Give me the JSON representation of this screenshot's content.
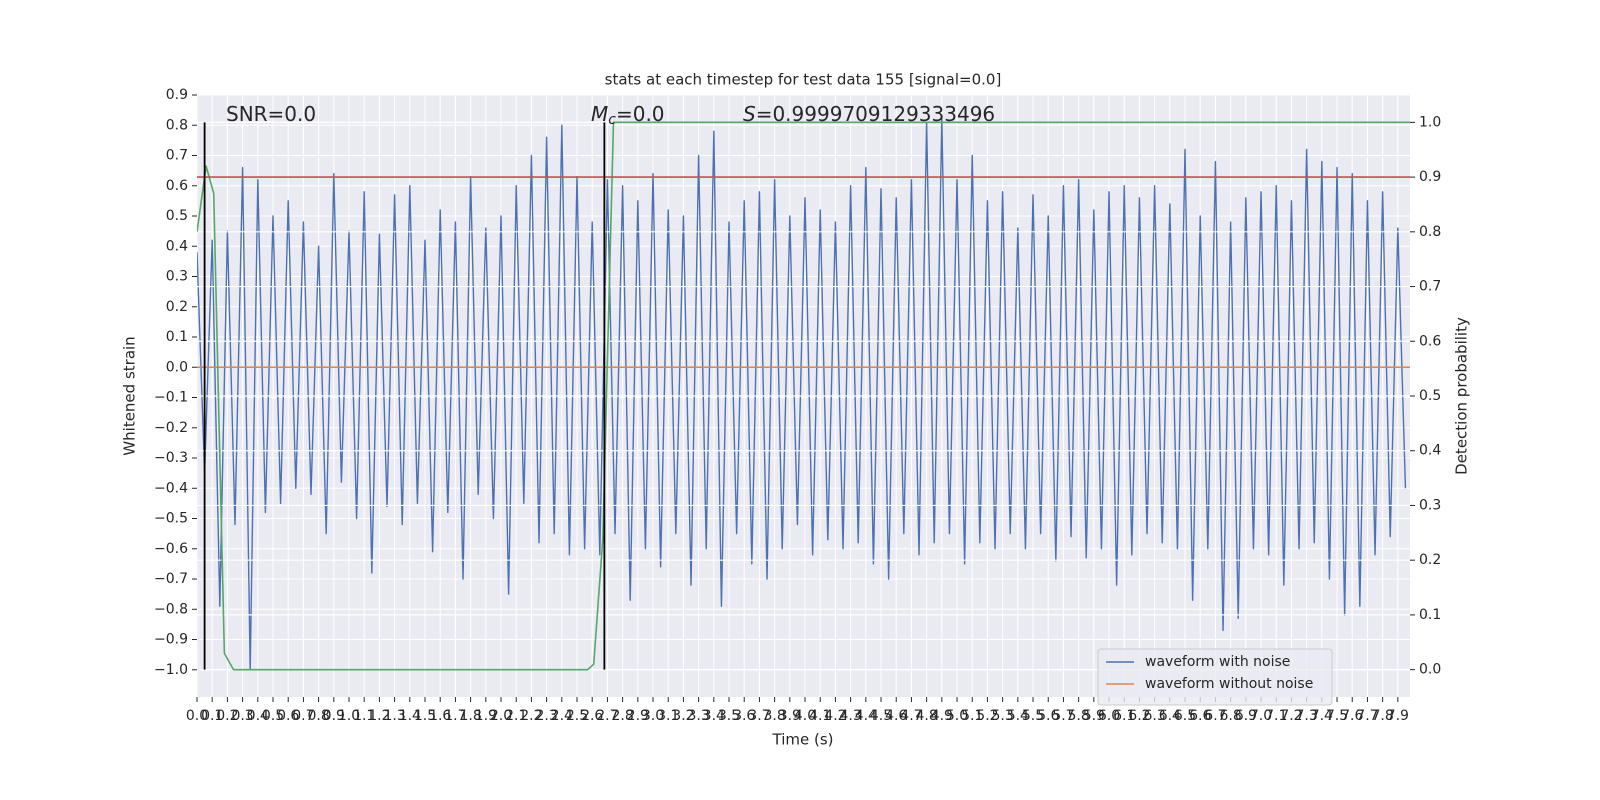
{
  "chart_data": {
    "type": "line",
    "title": "stats at each timestep for test data 155 [signal=0.0]",
    "xlabel": "Time (s)",
    "ylabel": "Whitened strain",
    "y2label": "Detection probability",
    "annotations": [
      {
        "text": "SNR=0.0"
      },
      {
        "italic": "M",
        "sub": "c",
        "text": "=0.0"
      },
      {
        "italic": "S",
        "text": "=0.9999709129333496"
      }
    ],
    "xlim": [
      0,
      7.98
    ],
    "ylim": [
      -1.09,
      0.9
    ],
    "y2lim": [
      -0.05,
      1.05
    ],
    "grid": true,
    "legend": "lower right",
    "xticks": [
      {
        "value": 0,
        "label": "0.0"
      },
      0.1,
      0.2,
      0.3,
      0.4,
      0.5,
      0.6,
      0.7,
      0.8,
      0.9,
      {
        "value": 1,
        "label": "1.0"
      },
      1.1,
      1.2,
      1.3,
      1.4,
      1.5,
      1.6,
      1.7,
      1.8,
      1.9,
      {
        "value": 2,
        "label": "2.0"
      },
      2.1,
      2.2,
      2.3,
      2.4,
      2.5,
      2.6,
      2.7,
      2.8,
      2.9,
      {
        "value": 3,
        "label": "3.0"
      },
      3.1,
      3.2,
      3.3,
      3.4,
      3.5,
      3.6,
      3.7,
      3.8,
      3.9,
      {
        "value": 4,
        "label": "4.0"
      },
      4.1,
      4.2,
      4.3,
      4.4,
      4.5,
      4.6,
      4.7,
      4.8,
      4.9,
      {
        "value": 5,
        "label": "5.0"
      },
      5.1,
      5.2,
      5.3,
      5.4,
      5.5,
      5.6,
      5.7,
      5.8,
      5.9,
      {
        "value": 6,
        "label": "6.0"
      },
      6.1,
      6.2,
      6.3,
      6.4,
      6.5,
      6.6,
      6.7,
      6.8,
      6.9,
      {
        "value": 7,
        "label": "7.0"
      },
      7.1,
      7.2,
      7.3,
      7.4,
      7.5,
      7.6,
      7.7,
      7.8,
      7.9
    ],
    "yticks": [
      0.9,
      0.8,
      0.7,
      0.6,
      0.5,
      0.4,
      0.3,
      0.2,
      0.1,
      {
        "value": 0,
        "label": "0.0"
      },
      {
        "value": -0.1,
        "label": "−0.1"
      },
      {
        "value": -0.2,
        "label": "−0.2"
      },
      {
        "value": -0.3,
        "label": "−0.3"
      },
      {
        "value": -0.4,
        "label": "−0.4"
      },
      {
        "value": -0.5,
        "label": "−0.5"
      },
      {
        "value": -0.6,
        "label": "−0.6"
      },
      {
        "value": -0.7,
        "label": "−0.7"
      },
      {
        "value": -0.8,
        "label": "−0.8"
      },
      {
        "value": -0.9,
        "label": "−0.9"
      },
      {
        "value": -1,
        "label": "−1.0"
      }
    ],
    "y2ticks": [
      {
        "value": 0,
        "label": "0.0"
      },
      0.1,
      0.2,
      0.3,
      0.4,
      0.5,
      0.6,
      0.7,
      0.8,
      0.9,
      {
        "value": 1,
        "label": "1.0"
      }
    ],
    "vlines": {
      "x": [
        0.05,
        2.68
      ],
      "ymin": 0,
      "ymax": 1,
      "axis": "y2",
      "color": "#000000"
    },
    "series": [
      {
        "name": "waveform with noise",
        "color": "#4c72b0",
        "x": [
          0,
          0.05,
          0.1,
          0.15,
          0.2,
          0.25,
          0.3,
          0.35,
          0.4,
          0.45,
          0.5,
          0.55,
          0.6,
          0.65,
          0.7,
          0.75,
          0.8,
          0.85,
          0.9,
          0.95,
          1,
          1.05,
          1.1,
          1.15,
          1.2,
          1.25,
          1.3,
          1.35,
          1.4,
          1.45,
          1.5,
          1.55,
          1.6,
          1.65,
          1.7,
          1.75,
          1.8,
          1.85,
          1.9,
          1.95,
          2,
          2.05,
          2.1,
          2.15,
          2.2,
          2.25,
          2.3,
          2.35,
          2.4,
          2.45,
          2.5,
          2.55,
          2.6,
          2.65,
          2.7,
          2.75,
          2.8,
          2.85,
          2.9,
          2.95,
          3,
          3.05,
          3.1,
          3.15,
          3.2,
          3.25,
          3.3,
          3.35,
          3.4,
          3.45,
          3.5,
          3.55,
          3.6,
          3.65,
          3.7,
          3.75,
          3.8,
          3.85,
          3.9,
          3.95,
          4,
          4.05,
          4.1,
          4.15,
          4.2,
          4.25,
          4.3,
          4.35,
          4.4,
          4.45,
          4.5,
          4.55,
          4.6,
          4.65,
          4.7,
          4.75,
          4.8,
          4.85,
          4.9,
          4.95,
          5,
          5.05,
          5.1,
          5.15,
          5.2,
          5.25,
          5.3,
          5.35,
          5.4,
          5.45,
          5.5,
          5.55,
          5.6,
          5.65,
          5.7,
          5.75,
          5.8,
          5.85,
          5.9,
          5.95,
          6,
          6.05,
          6.1,
          6.15,
          6.2,
          6.25,
          6.3,
          6.35,
          6.4,
          6.45,
          6.5,
          6.55,
          6.6,
          6.65,
          6.7,
          6.75,
          6.8,
          6.85,
          6.9,
          6.95,
          7,
          7.05,
          7.1,
          7.15,
          7.2,
          7.25,
          7.3,
          7.35,
          7.4,
          7.45,
          7.5,
          7.55,
          7.6,
          7.65,
          7.7,
          7.75,
          7.8,
          7.85,
          7.9,
          7.95
        ],
        "values": [
          0.38,
          -0.35,
          0.42,
          -0.79,
          0.45,
          -0.52,
          0.66,
          -1.0,
          0.62,
          -0.48,
          0.5,
          -0.45,
          0.55,
          -0.4,
          0.48,
          -0.42,
          0.4,
          -0.55,
          0.64,
          -0.38,
          0.45,
          -0.5,
          0.58,
          -0.68,
          0.44,
          -0.46,
          0.57,
          -0.52,
          0.6,
          -0.45,
          0.42,
          -0.61,
          0.52,
          -0.48,
          0.48,
          -0.7,
          0.63,
          -0.42,
          0.46,
          -0.5,
          0.5,
          -0.75,
          0.6,
          -0.45,
          0.7,
          -0.58,
          0.76,
          -0.55,
          0.8,
          -0.62,
          0.63,
          -0.6,
          0.48,
          -0.62,
          0.62,
          -0.55,
          0.6,
          -0.77,
          0.55,
          -0.6,
          0.64,
          -0.66,
          0.52,
          -0.55,
          0.5,
          -0.72,
          0.7,
          -0.6,
          0.78,
          -0.79,
          0.48,
          -0.55,
          0.55,
          -0.65,
          0.58,
          -0.7,
          0.62,
          -0.6,
          0.5,
          -0.52,
          0.56,
          -0.62,
          0.52,
          -0.57,
          0.48,
          -0.6,
          0.6,
          -0.58,
          0.66,
          -0.65,
          0.59,
          -0.7,
          0.56,
          -0.55,
          0.62,
          -0.62,
          0.81,
          -0.58,
          0.82,
          -0.55,
          0.62,
          -0.65,
          0.7,
          -0.58,
          0.55,
          -0.6,
          0.58,
          -0.55,
          0.46,
          -0.6,
          0.57,
          -0.55,
          0.5,
          -0.64,
          0.6,
          -0.56,
          0.62,
          -0.63,
          0.52,
          -0.6,
          0.58,
          -0.72,
          0.6,
          -0.62,
          0.56,
          -0.55,
          0.6,
          -0.58,
          0.54,
          -0.6,
          0.72,
          -0.77,
          0.5,
          -0.6,
          0.68,
          -0.87,
          0.48,
          -0.83,
          0.56,
          -0.6,
          0.58,
          -0.62,
          0.6,
          -0.72,
          0.55,
          -0.6,
          0.72,
          -0.58,
          0.68,
          -0.7,
          0.66,
          -0.82,
          0.64,
          -0.79,
          0.55,
          -0.62,
          0.58,
          -0.56,
          0.46,
          -0.4
        ]
      },
      {
        "name": "waveform without noise",
        "color": "#dd8452",
        "x": [
          0,
          7.98
        ],
        "values": [
          0,
          0
        ]
      },
      {
        "color": "#55a868",
        "axis": "y2",
        "x": [
          0,
          0.06,
          0.11,
          0.18,
          0.24,
          2.57,
          2.61,
          2.67,
          2.74,
          7.98
        ],
        "values": [
          0.8,
          0.92,
          0.87,
          0.03,
          0,
          0,
          0.01,
          0.24,
          1,
          1
        ]
      },
      {
        "color": "#c44e52",
        "axis": "y2",
        "x": [
          0,
          7.98
        ],
        "values": [
          0.9,
          0.9
        ]
      }
    ]
  }
}
